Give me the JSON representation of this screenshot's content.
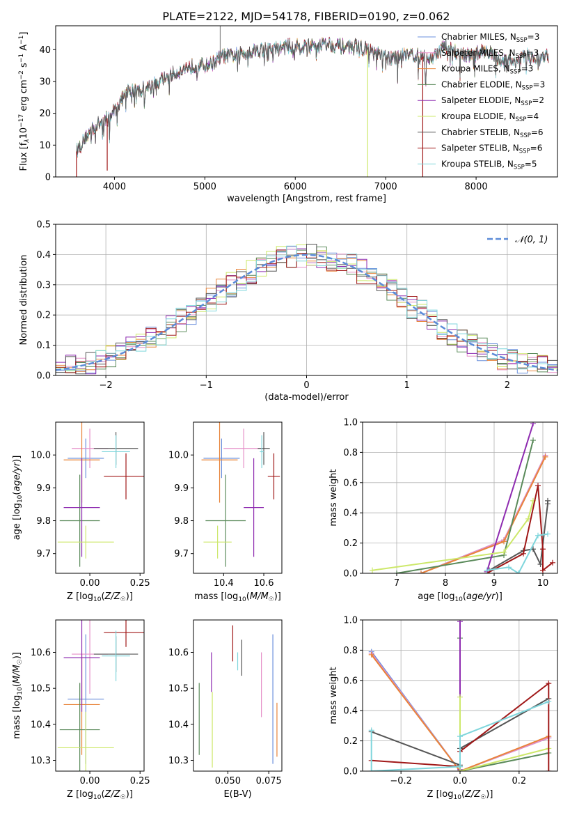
{
  "figure": {
    "title": "PLATE=2122, MJD=54178, FIBERID=0190, z=0.062"
  },
  "colors": {
    "Chabrier MILES": "#6a8fdc",
    "Salpeter MILES": "#e58fc8",
    "Kroupa MILES": "#e8843a",
    "Chabrier ELODIE": "#5a8a5a",
    "Salpeter ELODIE": "#8e2bb0",
    "Kroupa ELODIE": "#cde86a",
    "Chabrier STELIB": "#555555",
    "Salpeter STELIB": "#a01818",
    "Kroupa STELIB": "#7fd6dc",
    "normal": "#5b8bd8"
  },
  "chart_data": [
    {
      "type": "line",
      "xlabel": "wavelength [Angstrom, rest frame]",
      "ylabel": "Flux [f_λ10^-17 erg cm^-2 s^-1 A^-1]",
      "xlim": [
        3350,
        8900
      ],
      "ylim": [
        0,
        47.5
      ],
      "xticks": [
        "4000",
        "5000",
        "6000",
        "7000",
        "8000"
      ],
      "yticks": [
        "0",
        "10",
        "20",
        "30",
        "40"
      ],
      "grid": false,
      "legend": "top-right",
      "legend_entries": [
        {
          "model": "Chabrier MILES",
          "base": "Chabrier MILES, N",
          "sub": "SSP",
          "n": "=3"
        },
        {
          "model": "Salpeter MILES",
          "base": "Salpeter MILES, N",
          "sub": "SSP",
          "n": "=3"
        },
        {
          "model": "Kroupa MILES",
          "base": "Kroupa MILES, N",
          "sub": "SSP",
          "n": "=3"
        },
        {
          "model": "Chabrier ELODIE",
          "base": "Chabrier ELODIE, N",
          "sub": "SSP",
          "n": "=3"
        },
        {
          "model": "Salpeter ELODIE",
          "base": "Salpeter ELODIE, N",
          "sub": "SSP",
          "n": "=2"
        },
        {
          "model": "Kroupa ELODIE",
          "base": "Kroupa ELODIE, N",
          "sub": "SSP",
          "n": "=4"
        },
        {
          "model": "Chabrier STELIB",
          "base": "Chabrier STELIB, N",
          "sub": "SSP",
          "n": "=6"
        },
        {
          "model": "Salpeter STELIB",
          "base": "Salpeter STELIB, N",
          "sub": "SSP",
          "n": "=6"
        },
        {
          "model": "Kroupa STELIB",
          "base": "Kroupa STELIB, N",
          "sub": "SSP",
          "n": "=5"
        }
      ],
      "spectrum": {
        "x": [
          3580,
          3650,
          3750,
          3850,
          3950,
          4050,
          4150,
          4250,
          4350,
          4450,
          4550,
          4700,
          4850,
          5000,
          5100,
          5200,
          5300,
          5450,
          5600,
          5750,
          5900,
          6050,
          6200,
          6350,
          6500,
          6650,
          6800,
          6950,
          7100,
          7200,
          7350,
          7500,
          7650,
          7800,
          7950,
          8100,
          8250,
          8400,
          8550,
          8700,
          8800
        ],
        "y": [
          8,
          11,
          15,
          17,
          19,
          23,
          27,
          27,
          28,
          29,
          31,
          33,
          35,
          35,
          36,
          38,
          38,
          39,
          40,
          40,
          41,
          41,
          41,
          42,
          41,
          41,
          40,
          38,
          37,
          39,
          38,
          37,
          41,
          39,
          38,
          40,
          37,
          36,
          38,
          37,
          38
        ]
      },
      "sky_lines": [
        [
          3580,
          0
        ],
        [
          3920,
          2
        ],
        [
          6800,
          0
        ],
        [
          7410,
          0
        ],
        [
          8680,
          40
        ]
      ]
    },
    {
      "type": "histogram",
      "xlabel": "(data-model)/error",
      "ylabel": "Normed distribution",
      "xlim": [
        -2.5,
        2.5
      ],
      "ylim": [
        0,
        0.5
      ],
      "xticks": [
        "−2",
        "−1",
        "0",
        "1",
        "2"
      ],
      "yticks": [
        "0.0",
        "0.1",
        "0.2",
        "0.3",
        "0.4",
        "0.5"
      ],
      "grid": true,
      "legend": "top-right",
      "normal_label": "𝒩(0, 1)",
      "bin_edges_from": -2.5,
      "bin_width": 0.1
    },
    {
      "type": "scatter",
      "xlabel": "Z [log₁₀(Z/Z☉)]",
      "ylabel": "age [log₁₀(age/yr)]",
      "xlim": [
        -0.17,
        0.27
      ],
      "ylim": [
        9.64,
        10.1
      ],
      "xticks": [
        "0.00",
        "0.25"
      ],
      "yticks": [
        "9.7",
        "9.8",
        "9.9",
        "10.0"
      ],
      "points": [
        {
          "model": "Chabrier MILES",
          "x": -0.02,
          "xerr": 0.09,
          "y": 9.99,
          "yerr": 0.06
        },
        {
          "model": "Salpeter MILES",
          "x": 0.0,
          "xerr": 0.09,
          "y": 10.02,
          "yerr": 0.06
        },
        {
          "model": "Kroupa MILES",
          "x": -0.04,
          "xerr": 0.09,
          "y": 9.985,
          "yerr": 0.13
        },
        {
          "model": "Chabrier ELODIE",
          "x": -0.05,
          "xerr": 0.1,
          "y": 9.8,
          "yerr": 0.14
        },
        {
          "model": "Salpeter ELODIE",
          "x": -0.04,
          "xerr": 0.09,
          "y": 9.84,
          "yerr": 0.15
        },
        {
          "model": "Kroupa ELODIE",
          "x": -0.02,
          "xerr": 0.14,
          "y": 9.735,
          "yerr": 0.05
        },
        {
          "model": "Chabrier STELIB",
          "x": 0.13,
          "xerr": 0.11,
          "y": 10.02,
          "yerr": 0.05
        },
        {
          "model": "Salpeter STELIB",
          "x": 0.18,
          "xerr": 0.11,
          "y": 9.935,
          "yerr": 0.07
        },
        {
          "model": "Kroupa STELIB",
          "x": 0.13,
          "xerr": 0.07,
          "y": 10.01,
          "yerr": 0.05
        }
      ]
    },
    {
      "type": "scatter",
      "xlabel": "mass [log₁₀(M/M☉)]",
      "ylabel": "",
      "xlim": [
        10.25,
        10.69
      ],
      "ylim": [
        9.64,
        10.1
      ],
      "xticks": [
        "10.4",
        "10.6"
      ],
      "yticks": [
        "9.7",
        "9.8",
        "9.9",
        "10.0"
      ],
      "points": [
        {
          "model": "Chabrier MILES",
          "x": 10.39,
          "xerr": 0.09,
          "y": 9.99,
          "yerr": 0.06
        },
        {
          "model": "Salpeter MILES",
          "x": 10.5,
          "xerr": 0.1,
          "y": 10.02,
          "yerr": 0.06
        },
        {
          "model": "Kroupa MILES",
          "x": 10.38,
          "xerr": 0.09,
          "y": 9.985,
          "yerr": 0.13
        },
        {
          "model": "Chabrier ELODIE",
          "x": 10.41,
          "xerr": 0.1,
          "y": 9.8,
          "yerr": 0.14
        },
        {
          "model": "Salpeter ELODIE",
          "x": 10.55,
          "xerr": 0.05,
          "y": 9.84,
          "yerr": 0.15
        },
        {
          "model": "Kroupa ELODIE",
          "x": 10.37,
          "xerr": 0.07,
          "y": 9.735,
          "yerr": 0.05
        },
        {
          "model": "Chabrier STELIB",
          "x": 10.6,
          "xerr": 0.03,
          "y": 10.02,
          "yerr": 0.05
        },
        {
          "model": "Salpeter STELIB",
          "x": 10.65,
          "xerr": 0.03,
          "y": 9.935,
          "yerr": 0.07
        },
        {
          "model": "Kroupa STELIB",
          "x": 10.59,
          "xerr": 0.01,
          "y": 10.01,
          "yerr": 0.05
        }
      ]
    },
    {
      "type": "line",
      "xlabel": "age [log₁₀(age/yr)]",
      "ylabel": "mass weight",
      "xlim": [
        6.3,
        10.3
      ],
      "ylim": [
        0,
        1.0
      ],
      "xticks": [
        "7",
        "8",
        "9",
        "10"
      ],
      "yticks": [
        "0.0",
        "0.2",
        "0.4",
        "0.6",
        "0.8",
        "1.0"
      ],
      "grid": true,
      "series": [
        {
          "model": "Chabrier MILES",
          "x": [
            7.5,
            9.2,
            10.05
          ],
          "y": [
            0.0,
            0.22,
            0.78
          ]
        },
        {
          "model": "Salpeter MILES",
          "x": [
            7.5,
            9.2,
            10.05
          ],
          "y": [
            0.0,
            0.22,
            0.78
          ]
        },
        {
          "model": "Kroupa MILES",
          "x": [
            7.5,
            9.2,
            10.05
          ],
          "y": [
            0.0,
            0.21,
            0.77
          ]
        },
        {
          "model": "Chabrier ELODIE",
          "x": [
            7.0,
            9.2,
            9.8
          ],
          "y": [
            0.0,
            0.12,
            0.88
          ]
        },
        {
          "model": "Salpeter ELODIE",
          "x": [
            8.85,
            9.8
          ],
          "y": [
            0.01,
            0.99
          ]
        },
        {
          "model": "Kroupa ELODIE",
          "x": [
            6.5,
            9.2,
            9.7,
            9.8
          ],
          "y": [
            0.02,
            0.14,
            0.36,
            0.48
          ]
        },
        {
          "model": "Chabrier STELIB",
          "x": [
            8.9,
            9.6,
            9.8,
            9.95,
            10.1,
            10.1
          ],
          "y": [
            0.02,
            0.15,
            0.16,
            0.06,
            0.46,
            0.48
          ]
        },
        {
          "model": "Salpeter STELIB",
          "x": [
            8.85,
            9.6,
            9.9,
            10.0,
            10.0,
            10.2
          ],
          "y": [
            0.0,
            0.13,
            0.58,
            0.16,
            0.02,
            0.07
          ]
        },
        {
          "model": "Kroupa STELIB",
          "x": [
            8.85,
            9.3,
            9.5,
            9.9,
            10.1
          ],
          "y": [
            0.02,
            0.04,
            0.0,
            0.25,
            0.26
          ]
        }
      ]
    },
    {
      "type": "scatter",
      "xlabel": "Z [log₁₀(Z/Z☉)]",
      "ylabel": "mass [log₁₀(M/M☉)]",
      "xlim": [
        -0.17,
        0.27
      ],
      "ylim": [
        10.27,
        10.69
      ],
      "xticks": [
        "0.00",
        "0.25"
      ],
      "yticks": [
        "10.3",
        "10.4",
        "10.5",
        "10.6"
      ],
      "points": [
        {
          "model": "Chabrier MILES",
          "x": -0.02,
          "xerr": 0.09,
          "y": 10.47,
          "yerr": 0.18
        },
        {
          "model": "Salpeter MILES",
          "x": 0.0,
          "xerr": 0.09,
          "y": 10.595,
          "yerr": 0.11
        },
        {
          "model": "Kroupa MILES",
          "x": -0.04,
          "xerr": 0.09,
          "y": 10.455,
          "yerr": 0.14
        },
        {
          "model": "Chabrier ELODIE",
          "x": -0.05,
          "xerr": 0.1,
          "y": 10.385,
          "yerr": 0.13
        },
        {
          "model": "Salpeter ELODIE",
          "x": -0.04,
          "xerr": 0.09,
          "y": 10.585,
          "yerr": 0.15
        },
        {
          "model": "Kroupa ELODIE",
          "x": -0.02,
          "xerr": 0.14,
          "y": 10.335,
          "yerr": 0.1
        },
        {
          "model": "Chabrier STELIB",
          "x": 0.13,
          "xerr": 0.11,
          "y": 10.595,
          "yerr": 0.05
        },
        {
          "model": "Salpeter STELIB",
          "x": 0.18,
          "xerr": 0.11,
          "y": 10.655,
          "yerr": 0.04
        },
        {
          "model": "Kroupa STELIB",
          "x": 0.13,
          "xerr": 0.07,
          "y": 10.59,
          "yerr": 0.07
        }
      ]
    },
    {
      "type": "scatter",
      "xlabel": "E(B-V)",
      "ylabel": "",
      "xlim": [
        0.029,
        0.083
      ],
      "ylim": [
        10.27,
        10.69
      ],
      "xticks": [
        "0.050",
        "0.075"
      ],
      "yticks": [
        "10.3",
        "10.4",
        "10.5",
        "10.6"
      ],
      "points": [
        {
          "model": "Chabrier MILES",
          "x": 0.0775,
          "y": 10.47,
          "yerr": 0.18
        },
        {
          "model": "Salpeter MILES",
          "x": 0.0705,
          "y": 10.51,
          "yerr": 0.09
        },
        {
          "model": "Kroupa MILES",
          "x": 0.08,
          "y": 10.385,
          "yerr": 0.075
        },
        {
          "model": "Chabrier ELODIE",
          "x": 0.0325,
          "y": 10.415,
          "yerr": 0.1
        },
        {
          "model": "Salpeter ELODIE",
          "x": 0.04,
          "y": 10.545,
          "yerr": 0.055
        },
        {
          "model": "Kroupa ELODIE",
          "x": 0.0405,
          "y": 10.385,
          "yerr": 0.105
        },
        {
          "model": "Chabrier STELIB",
          "x": 0.0585,
          "y": 10.585,
          "yerr": 0.05
        },
        {
          "model": "Salpeter STELIB",
          "x": 0.053,
          "y": 10.625,
          "yerr": 0.05
        },
        {
          "model": "Kroupa STELIB",
          "x": 0.056,
          "y": 10.575,
          "yerr": 0.025
        }
      ]
    },
    {
      "type": "line",
      "xlabel": "Z [log₁₀(Z/Z☉)]",
      "ylabel": "mass weight",
      "xlim": [
        -0.33,
        0.33
      ],
      "ylim": [
        0,
        1.0
      ],
      "xticks": [
        "−0.2",
        "0.0",
        "0.2"
      ],
      "yticks": [
        "0.0",
        "0.2",
        "0.4",
        "0.6",
        "0.8",
        "1.0"
      ],
      "grid": true,
      "series": [
        {
          "model": "Chabrier MILES",
          "x": [
            -0.3,
            0.0,
            0.3
          ],
          "y": [
            0.79,
            0.0,
            0.22
          ]
        },
        {
          "model": "Salpeter MILES",
          "x": [
            -0.3,
            0.0,
            0.3
          ],
          "y": [
            0.78,
            0.0,
            0.22
          ]
        },
        {
          "model": "Kroupa MILES",
          "x": [
            -0.3,
            0.0,
            0.3
          ],
          "y": [
            0.77,
            0.0,
            0.23
          ]
        },
        {
          "model": "Chabrier ELODIE",
          "x": [
            0.0,
            0.0,
            0.3
          ],
          "y": [
            0.88,
            0.0,
            0.12
          ]
        },
        {
          "model": "Salpeter ELODIE",
          "x": [
            0.0,
            0.0
          ],
          "y": [
            0.99,
            0.01
          ]
        },
        {
          "model": "Kroupa ELODIE",
          "x": [
            0.0,
            0.0,
            0.3
          ],
          "y": [
            0.49,
            0.0,
            0.15
          ]
        },
        {
          "model": "Chabrier STELIB",
          "x": [
            -0.3,
            0.0,
            0.0,
            0.3
          ],
          "y": [
            0.26,
            0.04,
            0.15,
            0.48
          ]
        },
        {
          "model": "Salpeter STELIB",
          "x": [
            -0.3,
            0.0,
            0.0,
            0.3,
            0.3
          ],
          "y": [
            0.07,
            0.03,
            0.13,
            0.58,
            0.0
          ]
        },
        {
          "model": "Kroupa STELIB",
          "x": [
            -0.3,
            -0.3,
            0.0,
            0.0,
            0.3
          ],
          "y": [
            0.27,
            0.0,
            0.03,
            0.23,
            0.46
          ]
        }
      ]
    }
  ]
}
